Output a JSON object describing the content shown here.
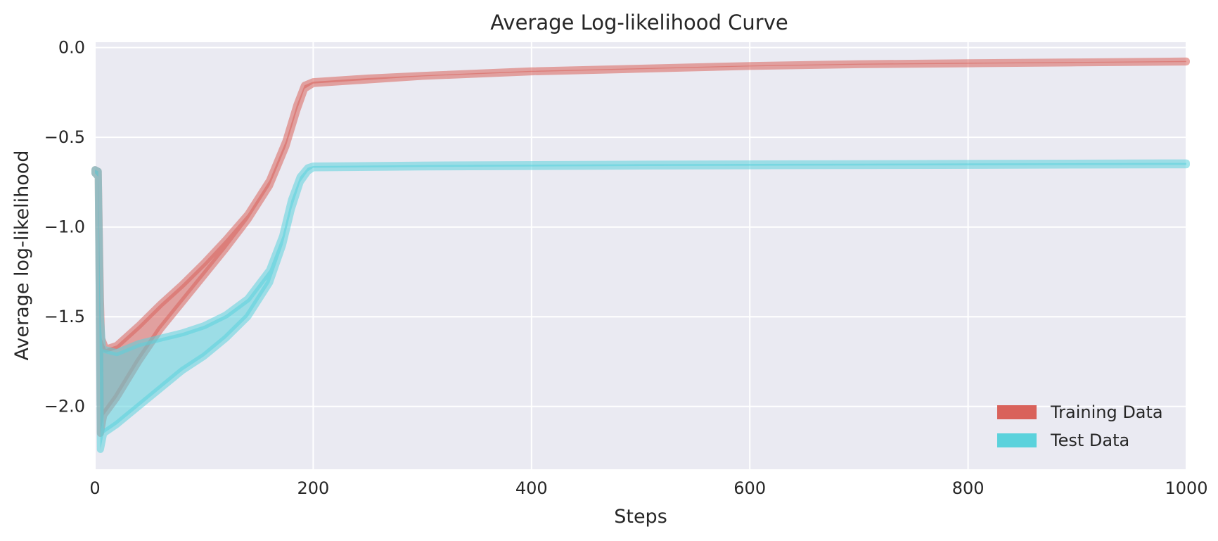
{
  "chart_data": {
    "type": "line",
    "title": "Average Log-likelihood Curve",
    "xlabel": "Steps",
    "ylabel": "Average log-likelihood",
    "xlim": [
      0,
      1000
    ],
    "ylim": [
      -2.35,
      0.03
    ],
    "xticks": [
      0,
      200,
      400,
      600,
      800,
      1000
    ],
    "xtick_labels": [
      "0",
      "200",
      "400",
      "600",
      "800",
      "1000"
    ],
    "yticks": [
      0.0,
      -0.5,
      -1.0,
      -1.5,
      -2.0
    ],
    "ytick_labels": [
      "0.0",
      "−0.5",
      "−1.0",
      "−1.5",
      "−2.0"
    ],
    "grid": true,
    "legend_position": "lower-right",
    "series": [
      {
        "name": "Training Data",
        "color": "#d9625b",
        "band_upper": [
          [
            0,
            -0.68
          ],
          [
            3,
            -0.69
          ],
          [
            5,
            -1.4
          ],
          [
            6,
            -1.62
          ],
          [
            10,
            -1.68
          ],
          [
            20,
            -1.66
          ],
          [
            40,
            -1.55
          ],
          [
            60,
            -1.43
          ],
          [
            80,
            -1.32
          ],
          [
            100,
            -1.2
          ],
          [
            120,
            -1.07
          ],
          [
            140,
            -0.93
          ],
          [
            160,
            -0.74
          ],
          [
            175,
            -0.52
          ],
          [
            185,
            -0.32
          ],
          [
            192,
            -0.21
          ],
          [
            200,
            -0.19
          ],
          [
            250,
            -0.17
          ],
          [
            300,
            -0.155
          ],
          [
            400,
            -0.13
          ],
          [
            500,
            -0.115
          ],
          [
            600,
            -0.1
          ],
          [
            700,
            -0.09
          ],
          [
            800,
            -0.085
          ],
          [
            900,
            -0.08
          ],
          [
            1000,
            -0.075
          ]
        ],
        "band_lower": [
          [
            0,
            -0.7
          ],
          [
            3,
            -0.72
          ],
          [
            5,
            -2.15
          ],
          [
            8,
            -2.05
          ],
          [
            20,
            -1.95
          ],
          [
            40,
            -1.75
          ],
          [
            60,
            -1.57
          ],
          [
            80,
            -1.42
          ],
          [
            100,
            -1.27
          ],
          [
            120,
            -1.12
          ],
          [
            140,
            -0.96
          ],
          [
            160,
            -0.77
          ],
          [
            175,
            -0.55
          ],
          [
            185,
            -0.35
          ],
          [
            192,
            -0.23
          ],
          [
            200,
            -0.2
          ],
          [
            250,
            -0.18
          ],
          [
            300,
            -0.16
          ],
          [
            400,
            -0.135
          ],
          [
            500,
            -0.12
          ],
          [
            600,
            -0.105
          ],
          [
            700,
            -0.095
          ],
          [
            800,
            -0.09
          ],
          [
            900,
            -0.085
          ],
          [
            1000,
            -0.08
          ]
        ]
      },
      {
        "name": "Test Data",
        "color": "#5bd2dc",
        "band_upper": [
          [
            0,
            -0.68
          ],
          [
            3,
            -0.69
          ],
          [
            5,
            -1.5
          ],
          [
            7,
            -1.68
          ],
          [
            20,
            -1.7
          ],
          [
            40,
            -1.65
          ],
          [
            60,
            -1.62
          ],
          [
            80,
            -1.59
          ],
          [
            100,
            -1.55
          ],
          [
            120,
            -1.49
          ],
          [
            140,
            -1.4
          ],
          [
            160,
            -1.24
          ],
          [
            172,
            -1.05
          ],
          [
            180,
            -0.85
          ],
          [
            188,
            -0.72
          ],
          [
            195,
            -0.67
          ],
          [
            200,
            -0.66
          ],
          [
            300,
            -0.655
          ],
          [
            500,
            -0.65
          ],
          [
            700,
            -0.647
          ],
          [
            1000,
            -0.643
          ]
        ],
        "band_lower": [
          [
            0,
            -0.7
          ],
          [
            3,
            -0.72
          ],
          [
            5,
            -2.24
          ],
          [
            8,
            -2.15
          ],
          [
            20,
            -2.1
          ],
          [
            40,
            -2.0
          ],
          [
            60,
            -1.9
          ],
          [
            80,
            -1.8
          ],
          [
            100,
            -1.72
          ],
          [
            120,
            -1.62
          ],
          [
            140,
            -1.5
          ],
          [
            160,
            -1.31
          ],
          [
            172,
            -1.1
          ],
          [
            180,
            -0.9
          ],
          [
            188,
            -0.75
          ],
          [
            195,
            -0.69
          ],
          [
            200,
            -0.67
          ],
          [
            300,
            -0.665
          ],
          [
            500,
            -0.66
          ],
          [
            700,
            -0.657
          ],
          [
            1000,
            -0.653
          ]
        ]
      }
    ]
  }
}
